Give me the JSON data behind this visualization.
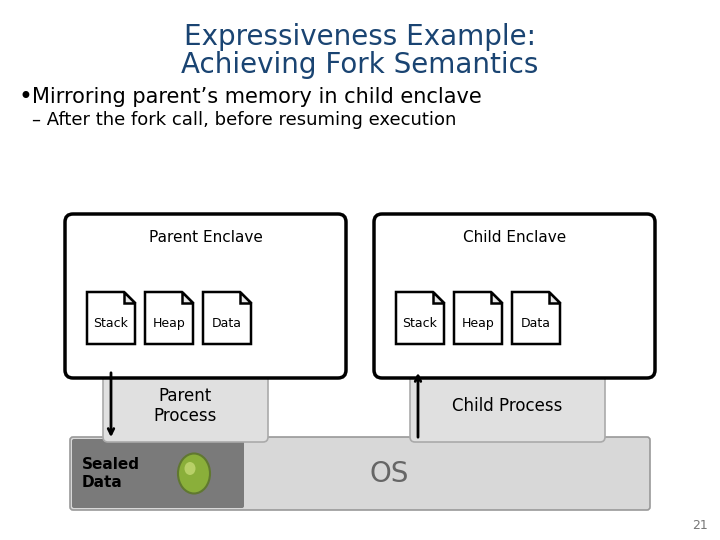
{
  "title_line1": "Expressiveness Example:",
  "title_line2": "Achieving Fork Semantics",
  "title_color": "#1a4472",
  "bullet_text": "Mirroring parent’s memory in child enclave",
  "sub_bullet_text": "– After the fork call, before resuming execution",
  "parent_enclave_label": "Parent Enclave",
  "child_enclave_label": "Child Enclave",
  "parent_boxes": [
    "Stack",
    "Heap",
    "Data"
  ],
  "child_boxes": [
    "Stack",
    "Heap",
    "Data"
  ],
  "parent_process_label": "Parent\nProcess",
  "child_process_label": "Child Process",
  "sealed_data_label": "Sealed\nData",
  "os_label": "OS",
  "slide_number": "21",
  "bg_color": "#ffffff",
  "title_fontsize": 20,
  "bullet_fontsize": 15,
  "sub_fontsize": 13,
  "diagram_label_fontsize": 11,
  "process_label_fontsize": 12,
  "icon_label_fontsize": 9,
  "os_fontsize": 20
}
